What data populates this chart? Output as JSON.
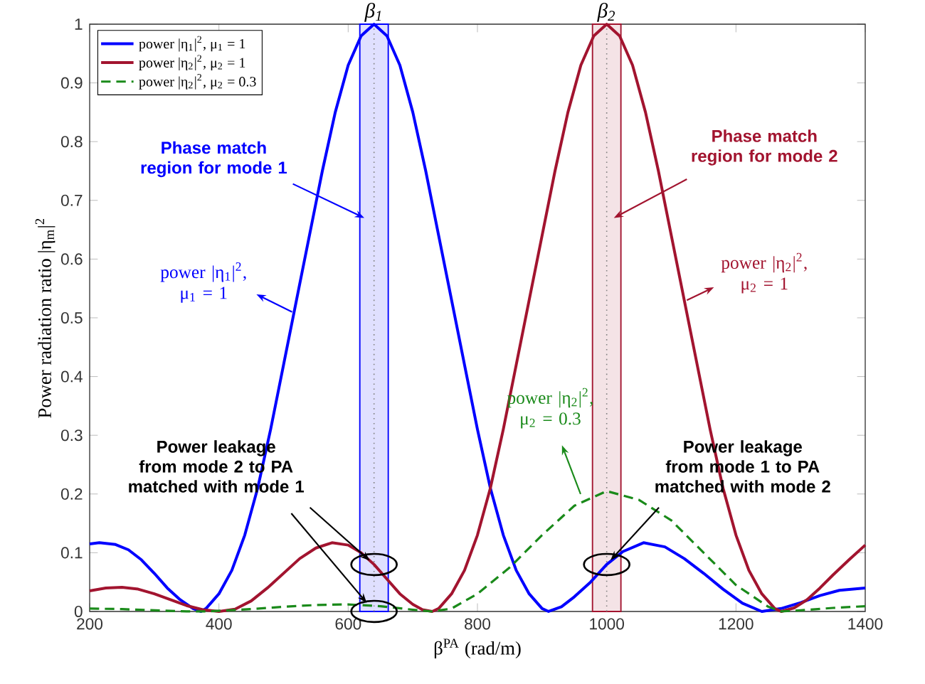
{
  "chart_data": {
    "type": "line",
    "xlabel": "β$^{PA}$ (rad/m)",
    "ylabel": "Power radiation ratio |η$_{m}$|$^{2}$",
    "xlim": [
      200,
      1400
    ],
    "ylim": [
      0,
      1
    ],
    "xticks": [
      200,
      400,
      600,
      800,
      1000,
      1200,
      1400
    ],
    "yticks": [
      0,
      0.1,
      0.2,
      0.3,
      0.4,
      0.5,
      0.6,
      0.7,
      0.8,
      0.9,
      1
    ],
    "legend": "top left",
    "series": [
      {
        "name": "power |η$_{1}$|$^{2}$, μ$_{1}$ = 1",
        "color": "#0000ff",
        "line_style": "solid",
        "x": [
          200,
          215,
          240,
          260,
          280,
          300,
          320,
          340,
          360,
          372,
          380,
          400,
          420,
          440,
          460,
          480,
          500,
          520,
          540,
          560,
          580,
          600,
          620,
          640,
          660,
          680,
          700,
          720,
          740,
          760,
          780,
          800,
          820,
          840,
          860,
          880,
          900,
          910,
          930,
          950,
          975,
          1000,
          1025,
          1057,
          1090,
          1120,
          1150,
          1180,
          1210,
          1240,
          1270,
          1300,
          1330,
          1360,
          1400
        ],
        "values": [
          0.115,
          0.117,
          0.114,
          0.105,
          0.088,
          0.065,
          0.04,
          0.02,
          0.005,
          0,
          0.005,
          0.03,
          0.07,
          0.13,
          0.21,
          0.31,
          0.42,
          0.53,
          0.64,
          0.75,
          0.85,
          0.93,
          0.98,
          1,
          0.98,
          0.93,
          0.85,
          0.75,
          0.64,
          0.53,
          0.42,
          0.31,
          0.21,
          0.13,
          0.07,
          0.03,
          0.005,
          0,
          0.008,
          0.025,
          0.05,
          0.08,
          0.102,
          0.117,
          0.11,
          0.09,
          0.065,
          0.038,
          0.014,
          0,
          0.005,
          0.015,
          0.027,
          0.036,
          0.04
        ]
      },
      {
        "name": "power |η$_{2}$|$^{2}$, μ$_{2}$ = 1",
        "color": "#a2142f",
        "line_style": "solid",
        "x": [
          200,
          225,
          250,
          275,
          300,
          325,
          350,
          375,
          400,
          425,
          450,
          475,
          500,
          525,
          550,
          575,
          600,
          620,
          640,
          660,
          680,
          700,
          715,
          730,
          740,
          760,
          780,
          800,
          820,
          840,
          860,
          880,
          900,
          920,
          940,
          960,
          980,
          1000,
          1020,
          1040,
          1060,
          1080,
          1100,
          1120,
          1140,
          1160,
          1180,
          1200,
          1220,
          1240,
          1260,
          1270,
          1290,
          1310,
          1330,
          1350,
          1375,
          1400
        ],
        "values": [
          0.035,
          0.04,
          0.041,
          0.038,
          0.03,
          0.02,
          0.01,
          0.003,
          0,
          0.004,
          0.018,
          0.04,
          0.065,
          0.09,
          0.108,
          0.117,
          0.113,
          0.1,
          0.08,
          0.055,
          0.03,
          0.012,
          0.003,
          0,
          0.005,
          0.03,
          0.07,
          0.13,
          0.21,
          0.31,
          0.42,
          0.53,
          0.64,
          0.75,
          0.85,
          0.93,
          0.98,
          1,
          0.98,
          0.93,
          0.85,
          0.75,
          0.64,
          0.53,
          0.42,
          0.31,
          0.21,
          0.13,
          0.07,
          0.03,
          0.005,
          0,
          0.006,
          0.02,
          0.04,
          0.062,
          0.088,
          0.113
        ]
      },
      {
        "name": "power |η$_{2}$|$^{2}$, μ$_{2}$ = 0.3",
        "color": "#1a8a1a",
        "line_style": "dashed",
        "x": [
          200,
          250,
          300,
          350,
          380,
          450,
          500,
          550,
          600,
          650,
          700,
          730,
          760,
          800,
          850,
          900,
          950,
          1000,
          1050,
          1100,
          1150,
          1200,
          1250,
          1270,
          1300,
          1350,
          1400
        ],
        "values": [
          0.005,
          0.004,
          0.002,
          0,
          0,
          0.004,
          0.008,
          0.011,
          0.012,
          0.009,
          0.003,
          0,
          0.005,
          0.03,
          0.075,
          0.13,
          0.18,
          0.205,
          0.19,
          0.155,
          0.1,
          0.045,
          0.008,
          0,
          0.002,
          0.006,
          0.009
        ]
      }
    ],
    "bands": [
      {
        "axis": "x",
        "from": 618,
        "to": 662,
        "color": "#0000ff"
      },
      {
        "axis": "x",
        "from": 978,
        "to": 1022,
        "color": "#a2142f"
      }
    ],
    "ref_lines": [
      {
        "axis": "x",
        "value": 640,
        "label": "β$_{1}$",
        "color": "#808080",
        "line_style": "dotted"
      },
      {
        "axis": "x",
        "value": 1000,
        "label": "β$_{2}$",
        "color": "#808080",
        "line_style": "dotted"
      }
    ],
    "annotations": [
      {
        "text": "Phase match region for mode 1",
        "x": 625,
        "y": 0.67
      },
      "power |η$_{1}$|$^{2}$, μ$_{1}$ = 1",
      {
        "text": "Phase match region for mode 2",
        "x": 1011,
        "y": 0.67
      },
      "power |η$_{2}$|$^{2}$, μ$_{2}$ = 1",
      "power |η$_{2}$|$^{2}$, μ$_{2}$ = 0.3",
      {
        "text": "Power leakage from mode 2 to PA matched with mode 1",
        "x": 640,
        "y": 0.08
      },
      {
        "text": "Power leakage from mode 1 to PA matched with mode 2",
        "x": 1000,
        "y": 0.08
      }
    ]
  }
}
